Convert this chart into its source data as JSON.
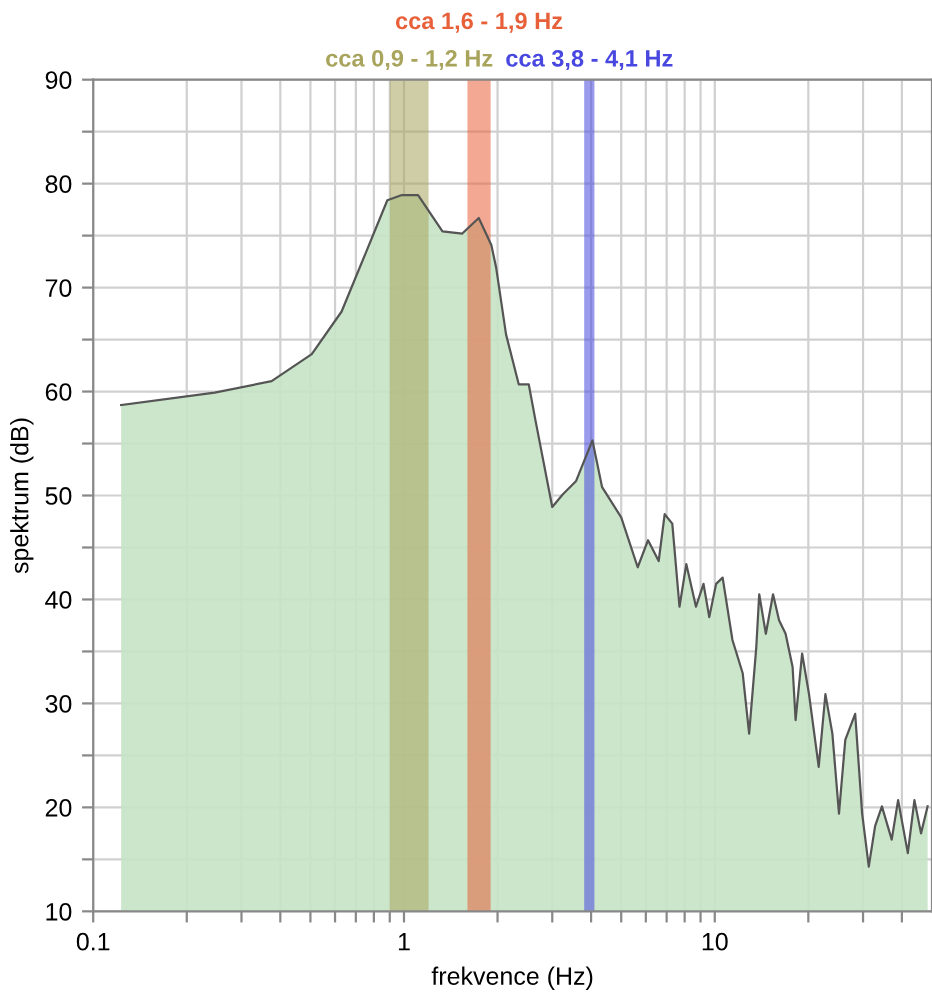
{
  "chart_data": {
    "type": "area",
    "xlabel": "frekvence (Hz)",
    "ylabel": "spektrum (dB)",
    "log": "x",
    "xlim": [
      0.1,
      50
    ],
    "ylim": [
      10,
      90
    ],
    "xticks": [
      0.1,
      {
        "value": 0.2,
        "label": null
      },
      {
        "value": 0.3,
        "label": null
      },
      {
        "value": 0.4,
        "label": null
      },
      {
        "value": 0.5,
        "label": null
      },
      {
        "value": 0.6,
        "label": null
      },
      {
        "value": 0.7,
        "label": null
      },
      {
        "value": 0.8,
        "label": null
      },
      {
        "value": 0.9,
        "label": null
      },
      1,
      {
        "value": 2,
        "label": null
      },
      {
        "value": 3,
        "label": null
      },
      {
        "value": 4,
        "label": null
      },
      {
        "value": 5,
        "label": null
      },
      {
        "value": 6,
        "label": null
      },
      {
        "value": 7,
        "label": null
      },
      {
        "value": 8,
        "label": null
      },
      {
        "value": 9,
        "label": null
      },
      10,
      {
        "value": 20,
        "label": null
      },
      {
        "value": 30,
        "label": null
      },
      {
        "value": 40,
        "label": null
      }
    ],
    "yticks": [
      10,
      {
        "value": 15,
        "label": null
      },
      20,
      {
        "value": 25,
        "label": null
      },
      30,
      {
        "value": 35,
        "label": null
      },
      40,
      {
        "value": 45,
        "label": null
      },
      50,
      {
        "value": 55,
        "label": null
      },
      60,
      {
        "value": 65,
        "label": null
      },
      70,
      {
        "value": 75,
        "label": null
      },
      80,
      {
        "value": 85,
        "label": null
      },
      90
    ],
    "grid": true,
    "legend": false,
    "series": [
      {
        "color": "#c5e3c5",
        "x": [
          0.123,
          0.246,
          0.375,
          0.505,
          0.63,
          0.75,
          0.884,
          0.985,
          1.11,
          1.33,
          1.54,
          1.74,
          1.91,
          1.98,
          2.13,
          2.34,
          2.52,
          2.65,
          3.0,
          3.24,
          3.58,
          4.04,
          4.34,
          5.0,
          5.65,
          6.1,
          6.6,
          6.9,
          7.3,
          7.7,
          8.1,
          8.7,
          9.2,
          9.6,
          10.1,
          10.6,
          11.4,
          12.3,
          12.9,
          13.6,
          13.9,
          14.6,
          15.4,
          16.1,
          16.9,
          17.8,
          18.2,
          19.1,
          20.1,
          21.6,
          22.7,
          23.9,
          25.1,
          26.3,
          28.3,
          29.8,
          31.3,
          32.8,
          34.5,
          37.1,
          38.9,
          41.8,
          43.9,
          46.1,
          48.4
        ],
        "values": [
          58.7,
          59.9,
          61.0,
          63.6,
          67.7,
          73.2,
          78.4,
          78.9,
          78.9,
          75.4,
          75.2,
          76.7,
          74.1,
          71.9,
          65.5,
          60.7,
          60.7,
          57.2,
          48.9,
          50.1,
          51.4,
          55.3,
          50.8,
          47.9,
          43.1,
          45.7,
          43.7,
          48.2,
          47.3,
          39.3,
          43.4,
          39.3,
          41.5,
          38.3,
          41.5,
          42.1,
          36.1,
          32.9,
          27.1,
          35.4,
          40.5,
          36.7,
          40.5,
          38.0,
          36.7,
          33.5,
          28.4,
          34.8,
          30.9,
          23.9,
          30.9,
          27.1,
          19.4,
          26.5,
          29.0,
          19.4,
          14.3,
          18.2,
          20.1,
          16.9,
          20.7,
          15.6,
          20.7,
          17.5,
          20.1
        ]
      }
    ],
    "bands": [
      {
        "axis": "x",
        "from": 0.9,
        "to": 1.2,
        "label": "cca 0,9 - 1,2 Hz",
        "color": "#a8a45c"
      },
      {
        "axis": "x",
        "from": 1.6,
        "to": 1.9,
        "label": "cca 1,6 - 1,9 Hz",
        "color": "#e8603a"
      },
      {
        "axis": "x",
        "from": 3.8,
        "to": 4.1,
        "label": "cca 3,8 - 4,1 Hz",
        "color": "#4848e0"
      }
    ]
  }
}
